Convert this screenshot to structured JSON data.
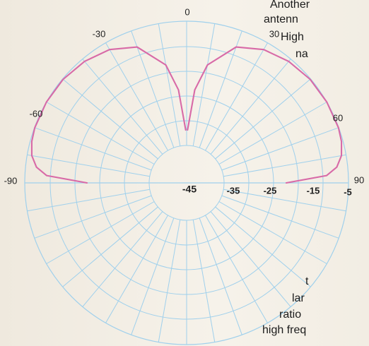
{
  "chart_data": {
    "type": "polar",
    "grid": true,
    "colors": {
      "grid": "#9fd0ec",
      "trace": "#d86aa7",
      "background": "#f3eee4"
    },
    "angle_labels": [
      {
        "text": "0",
        "angle": 0
      },
      {
        "text": "30",
        "angle": 30
      },
      {
        "text": "60",
        "angle": 60
      },
      {
        "text": "90",
        "angle": 90
      },
      {
        "text": "-90",
        "angle": -90
      },
      {
        "text": "-60",
        "angle": -60
      },
      {
        "text": "-30",
        "angle": -30
      }
    ],
    "radial_labels": [
      {
        "text": "-45"
      },
      {
        "text": "-35"
      },
      {
        "text": "-25"
      },
      {
        "text": "-15"
      },
      {
        "text": "-5"
      }
    ],
    "series": [
      {
        "values": [
          {
            "angle": -90,
            "level_db": -25
          },
          {
            "angle": -87,
            "level_db": -12
          },
          {
            "angle": -84,
            "level_db": -8.5
          },
          {
            "angle": -80,
            "level_db": -6.5
          },
          {
            "angle": -75,
            "level_db": -5.5
          },
          {
            "angle": -70,
            "level_db": -5.1
          },
          {
            "angle": -60,
            "level_db": -5.0
          },
          {
            "angle": -50,
            "level_db": -5.2
          },
          {
            "angle": -40,
            "level_db": -6.0
          },
          {
            "angle": -30,
            "level_db": -7.5
          },
          {
            "angle": -20,
            "level_db": -10.5
          },
          {
            "angle": -10,
            "level_db": -18.5
          },
          {
            "angle": -5,
            "level_db": -27
          },
          {
            "angle": -1,
            "level_db": -40
          }
        ]
      },
      {
        "values": [
          {
            "angle": 1,
            "level_db": -40
          },
          {
            "angle": 5,
            "level_db": -27
          },
          {
            "angle": 10,
            "level_db": -18.5
          },
          {
            "angle": 20,
            "level_db": -10.5
          },
          {
            "angle": 30,
            "level_db": -7.5
          },
          {
            "angle": 40,
            "level_db": -6.0
          },
          {
            "angle": 50,
            "level_db": -5.2
          },
          {
            "angle": 60,
            "level_db": -5.0
          },
          {
            "angle": 70,
            "level_db": -5.1
          },
          {
            "angle": 75,
            "level_db": -5.5
          },
          {
            "angle": 80,
            "level_db": -6.5
          },
          {
            "angle": 84,
            "level_db": -8.5
          },
          {
            "angle": 87,
            "level_db": -12
          },
          {
            "angle": 90,
            "level_db": -25
          }
        ]
      }
    ]
  },
  "side_text": {
    "lines": [
      "Another",
      "antenn",
      "High",
      "na",
      "t",
      "lar",
      "ratio",
      "high freq"
    ]
  }
}
